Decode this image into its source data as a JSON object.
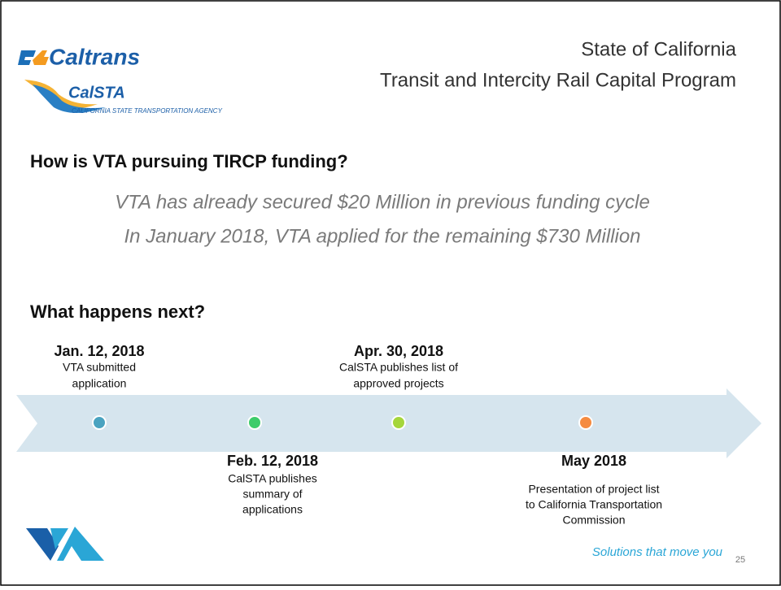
{
  "logos": {
    "caltrans": "Caltrans",
    "calsta": "CalSTA",
    "calsta_full": "CALIFORNIA STATE TRANSPORTATION AGENCY"
  },
  "header": {
    "line1": "State of California",
    "line2": "Transit and Intercity Rail Capital Program"
  },
  "question1": "How is VTA pursuing TIRCP funding?",
  "points": [
    "VTA has already secured $20 Million in previous funding cycle",
    "In January 2018, VTA applied for the remaining $730 Million"
  ],
  "question2": "What happens next?",
  "timeline": [
    {
      "date": "Jan. 12, 2018",
      "description": [
        "VTA submitted",
        "application"
      ]
    },
    {
      "date": "Feb. 12, 2018",
      "description": [
        "CalSTA publishes",
        "summary of",
        "applications"
      ]
    },
    {
      "date": "Apr. 30, 2018",
      "description": [
        "CalSTA publishes list of",
        "approved projects"
      ]
    },
    {
      "date": "May 2018",
      "description": [
        "Presentation of project list",
        "to California Transportation",
        "Commission"
      ]
    }
  ],
  "tagline": "Solutions that move you",
  "page_number": "25"
}
